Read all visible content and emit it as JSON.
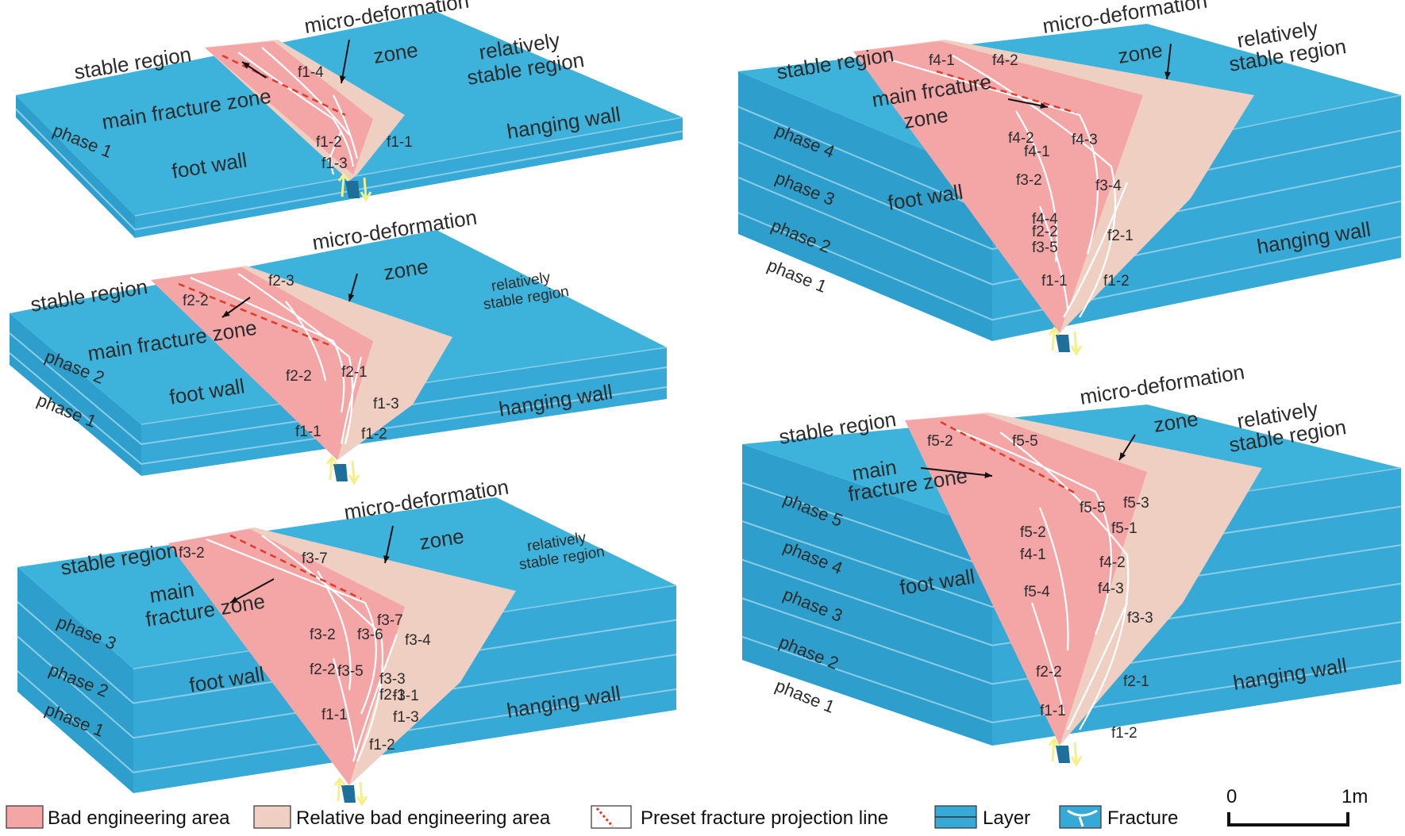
{
  "colors": {
    "layer_top": "#3db3dc",
    "layer_front": "#36a9d6",
    "layer_side": "#2e9fcc",
    "layer_line": "#8ccde6",
    "bad_area": "#f4a6a6",
    "relative_bad_area": "#f0cfc3",
    "fracture": "#ffffff",
    "preset_line": "#e23a2a",
    "text": "#2b2b2b"
  },
  "panels": [
    {
      "id": "p1",
      "labels": {
        "stable_region": "stable region",
        "micro_deformation": "micro-deformation",
        "micro_deformation_2": "zone",
        "relatively_stable": "relatively",
        "relatively_stable_2": "stable region",
        "main_fracture": "main fracture zone",
        "main_fracture_2": "",
        "foot_wall": "foot wall",
        "hanging_wall": "hanging wall"
      },
      "phases": [
        "phase 1"
      ],
      "fracture_labels": [
        "f1-4",
        "f1-2",
        "f1-1",
        "f1-3"
      ]
    },
    {
      "id": "p2",
      "labels": {
        "stable_region": "stable region",
        "micro_deformation": "micro-deformation",
        "micro_deformation_2": "zone",
        "relatively_stable": "relatively",
        "relatively_stable_2": "stable region",
        "main_fracture": "main fracture zone",
        "main_fracture_2": "",
        "foot_wall": "foot wall",
        "hanging_wall": "hanging wall"
      },
      "phases": [
        "phase 2",
        "phase 1"
      ],
      "fracture_labels": [
        "f2-3",
        "f2-2",
        "f2-2",
        "f2-1",
        "f1-3",
        "f1-1",
        "f1-2"
      ]
    },
    {
      "id": "p3",
      "labels": {
        "stable_region": "stable region",
        "micro_deformation": "micro-deformation",
        "micro_deformation_2": "zone",
        "relatively_stable": "relatively",
        "relatively_stable_2": "stable region",
        "main_fracture": "main",
        "main_fracture_2": "fracture zone",
        "foot_wall": "foot wall",
        "hanging_wall": "hanging wall"
      },
      "phases": [
        "phase 3",
        "phase 2",
        "phase 1"
      ],
      "fracture_labels": [
        "f3-2",
        "f3-7",
        "f3-7",
        "f3-2",
        "f3-6",
        "f3-4",
        "f2-2",
        "f3-5",
        "f3-3",
        "f3-1",
        "f2-1",
        "f1-1",
        "f1-3",
        "f1-2"
      ]
    },
    {
      "id": "p4",
      "labels": {
        "stable_region": "stable region",
        "micro_deformation": "micro-deformation",
        "micro_deformation_2": "zone",
        "relatively_stable": "relatively",
        "relatively_stable_2": "stable region",
        "main_fracture": "main frcature",
        "main_fracture_2": "zone",
        "foot_wall": "foot wall",
        "hanging_wall": "hanging wall"
      },
      "phases": [
        "phase 4",
        "phase 3",
        "phase 2",
        "phase 1"
      ],
      "fracture_labels": [
        "f4-1",
        "f4-2",
        "f4-1",
        "f4-2",
        "f4-3",
        "f3-2",
        "f3-4",
        "f4-4",
        "f2-2",
        "f3-5",
        "f2-1",
        "f1-1",
        "f1-2"
      ]
    },
    {
      "id": "p5",
      "labels": {
        "stable_region": "stable region",
        "micro_deformation": "micro-deformation",
        "micro_deformation_2": "zone",
        "relatively_stable": "relatively",
        "relatively_stable_2": "stable region",
        "main_fracture": "main",
        "main_fracture_2": "fracture zone",
        "foot_wall": "foot wall",
        "hanging_wall": "hanging wall"
      },
      "phases": [
        "phase 5",
        "phase 4",
        "phase 3",
        "phase 2",
        "phase 1"
      ],
      "fracture_labels": [
        "f5-2",
        "f5-5",
        "f5-5",
        "f5-3",
        "f5-2",
        "f5-1",
        "f4-1",
        "f4-2",
        "f4-3",
        "f5-4",
        "f3-3",
        "f2-2",
        "f2-1",
        "f1-1",
        "f1-2"
      ]
    }
  ],
  "legend": {
    "bad_area": "Bad engineering area",
    "relative_bad_area": "Relative bad engineering area",
    "preset_line": "Preset fracture projection line",
    "layer": "Layer",
    "fracture": "Fracture"
  },
  "scale_bar": {
    "start": "0",
    "end": "1m"
  }
}
